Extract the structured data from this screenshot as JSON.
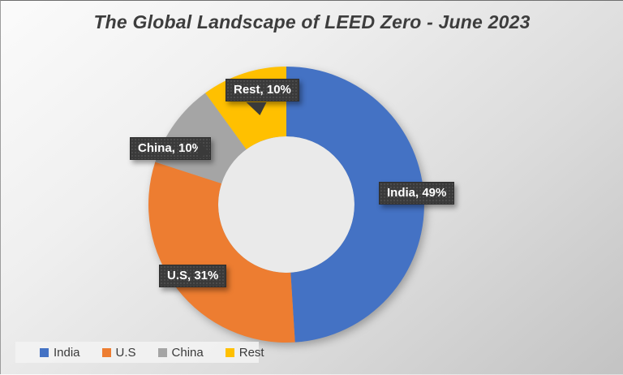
{
  "title": "The Global Landscape of LEED Zero - June 2023",
  "chart_data": {
    "type": "pie",
    "subtype": "donut",
    "title": "The Global Landscape of LEED Zero - June 2023",
    "categories": [
      "India",
      "U.S",
      "China",
      "Rest"
    ],
    "values": [
      49,
      31,
      10,
      10
    ],
    "unit": "%",
    "colors": [
      "#4472C4",
      "#ED7D31",
      "#A5A5A5",
      "#FFC000"
    ],
    "start_angle_deg": 0,
    "direction": "clockwise",
    "hole_ratio": 0.5,
    "legend_position": "bottom-left",
    "data_labels": [
      "India, 49%",
      "U.S, 31%",
      "China, 10%",
      "Rest, 10%"
    ],
    "label_style": {
      "background": "#3A3A3A",
      "text_color": "#FFFFFF"
    },
    "title_color": "#3D3D3D"
  },
  "legend": {
    "items": [
      {
        "label": "India",
        "color": "#4472C4"
      },
      {
        "label": "U.S",
        "color": "#ED7D31"
      },
      {
        "label": "China",
        "color": "#A5A5A5"
      },
      {
        "label": "Rest",
        "color": "#FFC000"
      }
    ]
  }
}
